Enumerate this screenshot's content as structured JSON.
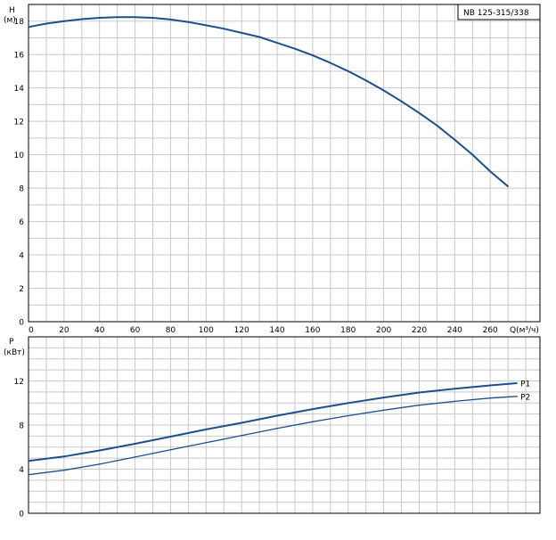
{
  "model_label": "NB 125-315/338",
  "chart_data": [
    {
      "type": "line",
      "title": "",
      "ylabel": "H",
      "yunit": "(м)",
      "xlabel": "Q(м³/ч)",
      "xlim": [
        0,
        288
      ],
      "ylim": [
        0,
        19
      ],
      "xticks": [
        0,
        20,
        40,
        60,
        80,
        100,
        120,
        140,
        160,
        180,
        200,
        220,
        240,
        260
      ],
      "yticks": [
        0,
        2,
        4,
        6,
        8,
        10,
        12,
        14,
        16,
        18
      ],
      "grid": true,
      "series": [
        {
          "name": "",
          "color": "#1f4f8a",
          "points": [
            [
              0,
              17.65
            ],
            [
              10,
              17.85
            ],
            [
              20,
              18.0
            ],
            [
              30,
              18.12
            ],
            [
              40,
              18.2
            ],
            [
              50,
              18.24
            ],
            [
              60,
              18.24
            ],
            [
              70,
              18.2
            ],
            [
              80,
              18.1
            ],
            [
              90,
              17.95
            ],
            [
              100,
              17.75
            ],
            [
              110,
              17.55
            ],
            [
              120,
              17.3
            ],
            [
              130,
              17.05
            ],
            [
              140,
              16.7
            ],
            [
              150,
              16.35
            ],
            [
              160,
              15.95
            ],
            [
              170,
              15.5
            ],
            [
              180,
              15.0
            ],
            [
              190,
              14.45
            ],
            [
              200,
              13.85
            ],
            [
              210,
              13.2
            ],
            [
              220,
              12.5
            ],
            [
              230,
              11.75
            ],
            [
              240,
              10.9
            ],
            [
              250,
              10.0
            ],
            [
              260,
              9.0
            ],
            [
              270,
              8.1
            ]
          ]
        }
      ]
    },
    {
      "type": "line",
      "title": "",
      "ylabel": "P",
      "yunit": "(кВт)",
      "xlabel": "",
      "xlim": [
        0,
        288
      ],
      "ylim": [
        0,
        16
      ],
      "yticks": [
        0,
        4,
        8,
        12
      ],
      "grid": true,
      "series": [
        {
          "name": "P1",
          "color": "#1f4f8a",
          "points": [
            [
              0,
              4.75
            ],
            [
              20,
              5.15
            ],
            [
              40,
              5.7
            ],
            [
              60,
              6.3
            ],
            [
              80,
              6.95
            ],
            [
              100,
              7.6
            ],
            [
              120,
              8.2
            ],
            [
              140,
              8.85
            ],
            [
              160,
              9.45
            ],
            [
              180,
              10.0
            ],
            [
              200,
              10.5
            ],
            [
              220,
              10.95
            ],
            [
              240,
              11.3
            ],
            [
              260,
              11.6
            ],
            [
              275,
              11.8
            ]
          ]
        },
        {
          "name": "P2",
          "color": "#1f4f8a",
          "points": [
            [
              0,
              3.5
            ],
            [
              20,
              3.9
            ],
            [
              40,
              4.45
            ],
            [
              60,
              5.1
            ],
            [
              80,
              5.75
            ],
            [
              100,
              6.4
            ],
            [
              120,
              7.05
            ],
            [
              140,
              7.7
            ],
            [
              160,
              8.3
            ],
            [
              180,
              8.85
            ],
            [
              200,
              9.35
            ],
            [
              220,
              9.8
            ],
            [
              240,
              10.15
            ],
            [
              260,
              10.45
            ],
            [
              275,
              10.6
            ]
          ]
        }
      ]
    }
  ]
}
